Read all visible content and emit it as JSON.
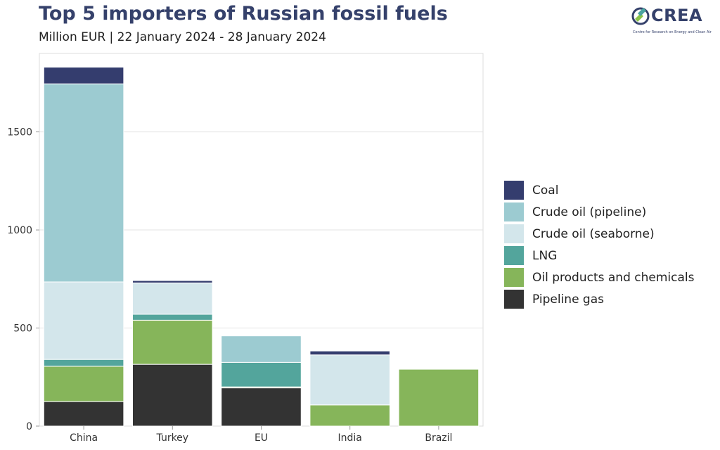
{
  "header": {
    "title": "Top 5 importers of Russian fossil fuels",
    "subtitle": "Million EUR | 22 January 2024 - 28 January 2024"
  },
  "logo": {
    "text": "CREA",
    "tagline": "Centre for Research on Energy and Clean Air",
    "colors": [
      "#8bc34a",
      "#4aa3a0",
      "#35416b"
    ]
  },
  "chart_data": {
    "type": "bar",
    "stacked": true,
    "categories": [
      "China",
      "Turkey",
      "EU",
      "India",
      "Brazil"
    ],
    "series": [
      {
        "name": "Pipeline gas",
        "color": "#333333",
        "values": [
          125,
          315,
          195,
          0,
          0
        ]
      },
      {
        "name": "Oil products and chemicals",
        "color": "#86b55a",
        "values": [
          180,
          225,
          5,
          108,
          290
        ]
      },
      {
        "name": "LNG",
        "color": "#53a59c",
        "values": [
          35,
          30,
          125,
          0,
          0
        ]
      },
      {
        "name": "Crude oil (seaborne)",
        "color": "#d3e6eb",
        "values": [
          395,
          160,
          0,
          255,
          0
        ]
      },
      {
        "name": "Crude oil (pipeline)",
        "color": "#9ccbd1",
        "values": [
          1010,
          0,
          135,
          0,
          0
        ]
      },
      {
        "name": "Coal",
        "color": "#343d6e",
        "values": [
          85,
          12,
          0,
          20,
          0
        ]
      }
    ],
    "legend_order": [
      "Coal",
      "Crude oil (pipeline)",
      "Crude oil (seaborne)",
      "LNG",
      "Oil products and chemicals",
      "Pipeline gas"
    ],
    "yticks": [
      0,
      500,
      1000,
      1500
    ],
    "ylim": [
      0,
      1900
    ],
    "grid": true,
    "legend_position": "right"
  }
}
